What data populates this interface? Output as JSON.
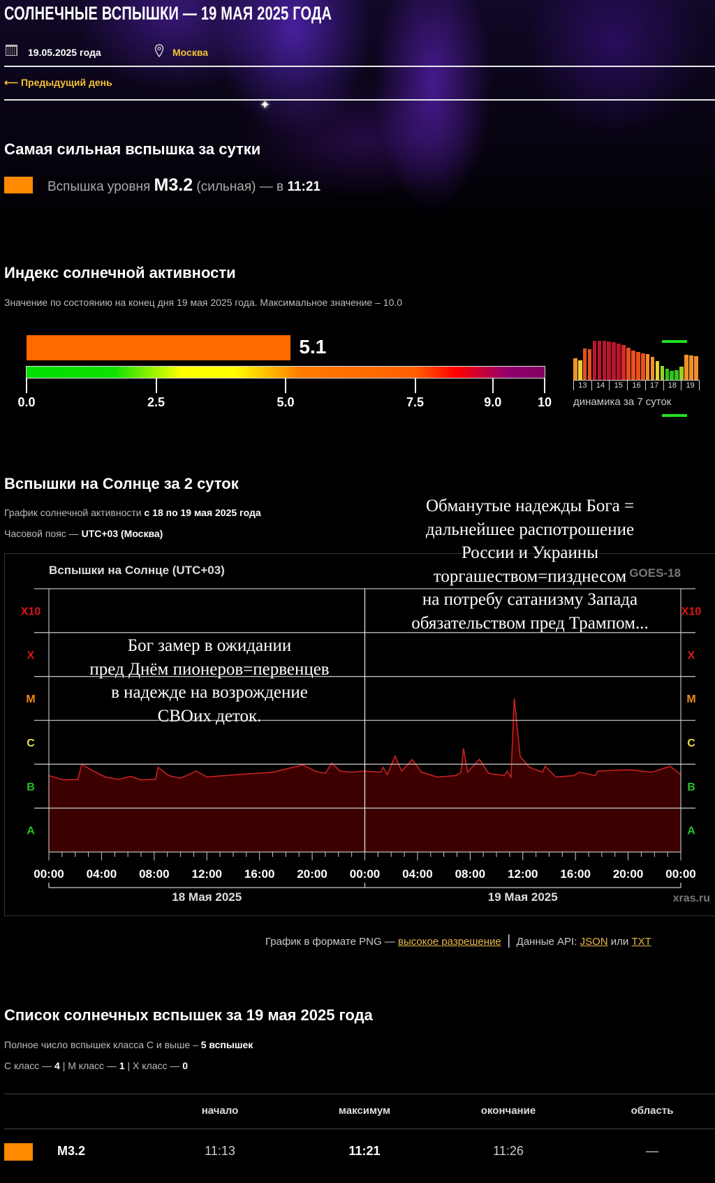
{
  "header": {
    "title": "СОЛНЕЧНЫЕ ВСПЫШКИ — 19 МАЯ 2025 ГОДА",
    "date": "19.05.2025 года",
    "city": "Москва",
    "prev_day": "Предыдущий день"
  },
  "strongest": {
    "heading": "Самая сильная вспышка за сутки",
    "prefix": "Вспышка уровня",
    "class": "M3.2",
    "strength": "(сильная) — в",
    "time": "11:21",
    "color": "#ff8a00"
  },
  "index": {
    "heading": "Индекс солнечной активности",
    "subtitle": "Значение по состоянию на конец дня 19 мая 2025 года. Максимальное значение – 10.0",
    "value": 5.1,
    "value_label": "5.1",
    "max": 10,
    "scale_ticks": [
      "0.0",
      "2.5",
      "5.0",
      "7.5",
      "9.0",
      "10"
    ],
    "bar_color": "#ff6a00",
    "dynamics_label": "динамика за 7 суток",
    "dynamics_days": [
      "13",
      "14",
      "15",
      "16",
      "17",
      "18",
      "19"
    ],
    "dynamics_values": [
      4.2,
      3.8,
      6.0,
      5.9,
      7.5,
      7.5,
      7.5,
      7.4,
      7.2,
      7.0,
      6.7,
      6.1,
      5.6,
      5.4,
      5.1,
      4.9,
      4.4,
      3.6,
      2.7,
      2.1,
      1.8,
      1.9,
      2.5,
      4.8,
      4.7,
      4.6
    ]
  },
  "flares2d": {
    "heading": "Вспышки на Солнце за 2 суток",
    "line1_prefix": "График солнечной активности",
    "line1_bold": "с 18 по 19 мая 2025 года",
    "line2_prefix": "Часовой пояс —",
    "line2_bold": "UTC+03 (Москва)"
  },
  "chart_data": {
    "type": "area",
    "title": "Вспышки на Солнце (UTC+03)",
    "satellite": "GOES-18",
    "credit": "xras.ru",
    "y_scale": "log",
    "ylim": [
      1e-08,
      0.01
    ],
    "y_class_labels": [
      {
        "label": "A",
        "flux": 1e-08,
        "color": "#22c022"
      },
      {
        "label": "B",
        "flux": 1e-07,
        "color": "#22c022"
      },
      {
        "label": "C",
        "flux": 1e-06,
        "color": "#e6e040"
      },
      {
        "label": "M",
        "flux": 1e-05,
        "color": "#f08a10"
      },
      {
        "label": "X",
        "flux": 0.0001,
        "color": "#e01515"
      },
      {
        "label": "X10",
        "flux": 0.001,
        "color": "#e01515"
      }
    ],
    "xlim": [
      "2025-05-18T00:00",
      "2025-05-20T00:00"
    ],
    "x_ticks": [
      "00:00",
      "04:00",
      "08:00",
      "12:00",
      "16:00",
      "20:00",
      "00:00",
      "04:00",
      "08:00",
      "12:00",
      "16:00",
      "20:00",
      "00:00"
    ],
    "date_labels": [
      "18 Мая 2025",
      "19 Мая 2025"
    ],
    "grid": true,
    "line_color": "#c82020",
    "fill_color": "#3c0000",
    "series": [
      {
        "points": [
          [
            "2025-05-18T00:00",
            5.5e-07
          ],
          [
            "2025-05-18T01:06",
            4.4e-07
          ],
          [
            "2025-05-18T02:12",
            4.5e-07
          ],
          [
            "2025-05-18T02:30",
            1e-06
          ],
          [
            "2025-05-18T03:12",
            7.5e-07
          ],
          [
            "2025-05-18T04:18",
            5.1e-07
          ],
          [
            "2025-05-18T05:18",
            4.5e-07
          ],
          [
            "2025-05-18T06:12",
            5.3e-07
          ],
          [
            "2025-05-18T07:00",
            4.4e-07
          ],
          [
            "2025-05-18T08:06",
            4.5e-07
          ],
          [
            "2025-05-18T08:18",
            8.5e-07
          ],
          [
            "2025-05-18T09:06",
            5.5e-07
          ],
          [
            "2025-05-18T10:00",
            4.8e-07
          ],
          [
            "2025-05-18T11:12",
            7e-07
          ],
          [
            "2025-05-18T12:00",
            5.1e-07
          ],
          [
            "2025-05-18T14:18",
            5.8e-07
          ],
          [
            "2025-05-18T17:00",
            6.6e-07
          ],
          [
            "2025-05-18T19:18",
            9.6e-07
          ],
          [
            "2025-05-18T20:12",
            7e-07
          ],
          [
            "2025-05-18T21:00",
            6.2e-07
          ],
          [
            "2025-05-18T21:30",
            1.06e-06
          ],
          [
            "2025-05-18T22:06",
            7e-07
          ],
          [
            "2025-05-18T23:00",
            6.6e-07
          ],
          [
            "2025-05-19T00:00",
            7e-07
          ],
          [
            "2025-05-19T01:12",
            6.6e-07
          ],
          [
            "2025-05-19T01:24",
            8.5e-07
          ],
          [
            "2025-05-19T01:42",
            5.8e-07
          ],
          [
            "2025-05-19T02:18",
            1.53e-06
          ],
          [
            "2025-05-19T02:48",
            7e-07
          ],
          [
            "2025-05-19T03:36",
            1.27e-06
          ],
          [
            "2025-05-19T04:18",
            6.6e-07
          ],
          [
            "2025-05-19T05:30",
            5.1e-07
          ],
          [
            "2025-05-19T06:54",
            5.5e-07
          ],
          [
            "2025-05-19T07:18",
            6.6e-07
          ],
          [
            "2025-05-19T07:30",
            2.3e-06
          ],
          [
            "2025-05-19T07:48",
            6.6e-07
          ],
          [
            "2025-05-19T08:42",
            1.3e-06
          ],
          [
            "2025-05-19T09:24",
            6.2e-07
          ],
          [
            "2025-05-19T10:36",
            5.5e-07
          ],
          [
            "2025-05-19T10:48",
            7e-07
          ],
          [
            "2025-05-19T11:06",
            5.1e-07
          ],
          [
            "2025-05-19T11:21",
            3.2e-05
          ],
          [
            "2025-05-19T11:48",
            1.5e-06
          ],
          [
            "2025-05-19T12:30",
            8.5e-07
          ],
          [
            "2025-05-19T13:30",
            6.6e-07
          ],
          [
            "2025-05-19T13:42",
            9e-07
          ],
          [
            "2025-05-19T14:30",
            5.1e-07
          ],
          [
            "2025-05-19T15:54",
            5.5e-07
          ],
          [
            "2025-05-19T16:18",
            6.6e-07
          ],
          [
            "2025-05-19T17:30",
            5.5e-07
          ],
          [
            "2025-05-19T17:42",
            7e-07
          ],
          [
            "2025-05-19T20:06",
            7.5e-07
          ],
          [
            "2025-05-19T21:48",
            6.6e-07
          ],
          [
            "2025-05-19T23:12",
            9e-07
          ],
          [
            "2025-05-20T00:00",
            5.8e-07
          ]
        ]
      }
    ]
  },
  "overlay_left": [
    "Бог замер в ожидании",
    "пред Днём пионеров=первенцев",
    "в надежде на возрождение",
    "СВОих деток."
  ],
  "overlay_right": [
    "Обманутые надежды Бога =",
    "дальнейшее распотрошение",
    "России и Украины",
    "торгашеством=пизднесом",
    "на потребу сатанизму Запада",
    "обязательством пред Трампом..."
  ],
  "links": {
    "png_prefix": "График в формате PNG —",
    "png_link": "высокое разрешение",
    "sep": "|",
    "api_prefix": "Данные API:",
    "json_link": "JSON",
    "or": "или",
    "txt_link": "TXT"
  },
  "list": {
    "heading": "Список солнечных вспышек за 19 мая 2025 года",
    "total_prefix": "Полное число вспышек класса С и выше –",
    "total_bold": "5 вспышек",
    "c_label": "С класс —",
    "c_count": "4",
    "m_label": "| М класс —",
    "m_count": "1",
    "x_label": "| Х класс —",
    "x_count": "0",
    "columns": [
      "начало",
      "максимум",
      "окончание",
      "область"
    ],
    "rows": [
      {
        "class": "M3.2",
        "start": "11:13",
        "max": "11:21",
        "end": "11:26",
        "region": "—",
        "color": "#ff8a00"
      }
    ]
  }
}
